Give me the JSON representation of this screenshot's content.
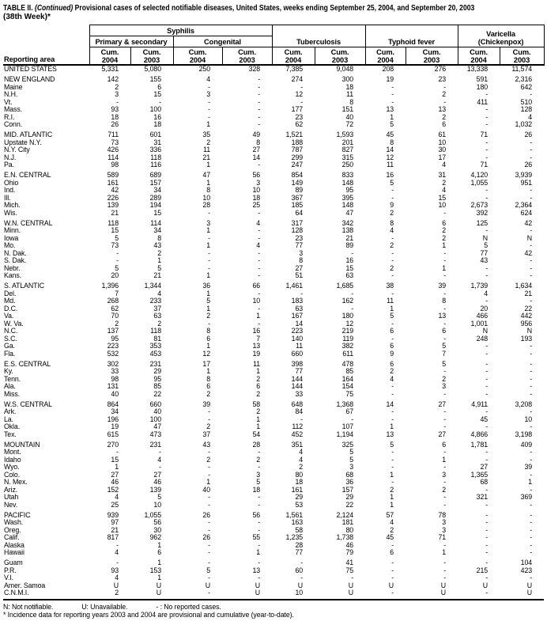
{
  "title": {
    "part1": "TABLE II.",
    "part2": "(Continued)",
    "part3": "Provisional cases of selected notifiable diseases, United States, weeks ending September 25, 2004, and September 20, 2003",
    "line2": "(38th Week)*"
  },
  "colors": {
    "text": "#000000",
    "background": "#ffffff",
    "rule": "#000000"
  },
  "table": {
    "columns": {
      "reporting_area": "Reporting area",
      "syphilis": "Syphilis",
      "primary_secondary": "Primary & secondary",
      "congenital": "Congenital",
      "tuberculosis": "Tuberculosis",
      "typhoid": "Typhoid fever",
      "varicella_line1": "Varicella",
      "varicella_line2": "(Chickenpox)",
      "cum_label": "Cum.",
      "years": [
        "2004",
        "2003",
        "2004",
        "2003",
        "2004",
        "2003",
        "2004",
        "2003",
        "2004",
        "2003"
      ]
    },
    "rows": [
      {
        "label": "UNITED STATES",
        "type": "total",
        "values": [
          "5,331",
          "5,080",
          "250",
          "328",
          "7,385",
          "9,048",
          "208",
          "276",
          "13,338",
          "11,574"
        ]
      },
      {
        "type": "gap"
      },
      {
        "label": "NEW ENGLAND",
        "type": "region",
        "values": [
          "142",
          "155",
          "4",
          "-",
          "274",
          "300",
          "19",
          "23",
          "591",
          "2,316"
        ]
      },
      {
        "label": "Maine",
        "type": "state",
        "values": [
          "2",
          "6",
          "-",
          "-",
          "-",
          "18",
          "-",
          "-",
          "180",
          "642"
        ]
      },
      {
        "label": "N.H.",
        "type": "state",
        "values": [
          "3",
          "15",
          "3",
          "-",
          "12",
          "11",
          "-",
          "2",
          "-",
          "-"
        ]
      },
      {
        "label": "Vt.",
        "type": "state",
        "values": [
          "-",
          "-",
          "-",
          "-",
          "-",
          "8",
          "-",
          "-",
          "411",
          "510"
        ]
      },
      {
        "label": "Mass.",
        "type": "state",
        "values": [
          "93",
          "100",
          "-",
          "-",
          "177",
          "151",
          "13",
          "13",
          "-",
          "128"
        ]
      },
      {
        "label": "R.I.",
        "type": "state",
        "values": [
          "18",
          "16",
          "-",
          "-",
          "23",
          "40",
          "1",
          "2",
          "-",
          "4"
        ]
      },
      {
        "label": "Conn.",
        "type": "state",
        "values": [
          "26",
          "18",
          "1",
          "-",
          "62",
          "72",
          "5",
          "6",
          "-",
          "1,032"
        ]
      },
      {
        "type": "gap"
      },
      {
        "label": "MID. ATLANTIC",
        "type": "region",
        "values": [
          "711",
          "601",
          "35",
          "49",
          "1,521",
          "1,593",
          "45",
          "61",
          "71",
          "26"
        ]
      },
      {
        "label": "Upstate N.Y.",
        "type": "state",
        "values": [
          "73",
          "31",
          "2",
          "8",
          "188",
          "201",
          "8",
          "10",
          "-",
          "-"
        ]
      },
      {
        "label": "N.Y. City",
        "type": "state",
        "values": [
          "426",
          "336",
          "11",
          "27",
          "787",
          "827",
          "14",
          "30",
          "-",
          "-"
        ]
      },
      {
        "label": "N.J.",
        "type": "state",
        "values": [
          "114",
          "118",
          "21",
          "14",
          "299",
          "315",
          "12",
          "17",
          "-",
          "-"
        ]
      },
      {
        "label": "Pa.",
        "type": "state",
        "values": [
          "98",
          "116",
          "1",
          "-",
          "247",
          "250",
          "11",
          "4",
          "71",
          "26"
        ]
      },
      {
        "type": "gap"
      },
      {
        "label": "E.N. CENTRAL",
        "type": "region",
        "values": [
          "589",
          "689",
          "47",
          "56",
          "854",
          "833",
          "16",
          "31",
          "4,120",
          "3,939"
        ]
      },
      {
        "label": "Ohio",
        "type": "state",
        "values": [
          "161",
          "157",
          "1",
          "3",
          "149",
          "148",
          "5",
          "2",
          "1,055",
          "951"
        ]
      },
      {
        "label": "Ind.",
        "type": "state",
        "values": [
          "42",
          "34",
          "8",
          "10",
          "89",
          "95",
          "-",
          "4",
          "-",
          "-"
        ]
      },
      {
        "label": "Ill.",
        "type": "state",
        "values": [
          "226",
          "289",
          "10",
          "18",
          "367",
          "395",
          "-",
          "15",
          "-",
          "-"
        ]
      },
      {
        "label": "Mich.",
        "type": "state",
        "values": [
          "139",
          "194",
          "28",
          "25",
          "185",
          "148",
          "9",
          "10",
          "2,673",
          "2,364"
        ]
      },
      {
        "label": "Wis.",
        "type": "state",
        "values": [
          "21",
          "15",
          "-",
          "-",
          "64",
          "47",
          "2",
          "-",
          "392",
          "624"
        ]
      },
      {
        "type": "gap"
      },
      {
        "label": "W.N. CENTRAL",
        "type": "region",
        "values": [
          "118",
          "114",
          "3",
          "4",
          "317",
          "342",
          "8",
          "6",
          "125",
          "42"
        ]
      },
      {
        "label": "Minn.",
        "type": "state",
        "values": [
          "15",
          "34",
          "1",
          "-",
          "128",
          "138",
          "4",
          "2",
          "-",
          "-"
        ]
      },
      {
        "label": "Iowa",
        "type": "state",
        "values": [
          "5",
          "8",
          "-",
          "-",
          "23",
          "21",
          "-",
          "2",
          "N",
          "N"
        ]
      },
      {
        "label": "Mo.",
        "type": "state",
        "values": [
          "73",
          "43",
          "1",
          "4",
          "77",
          "89",
          "2",
          "1",
          "5",
          "-"
        ]
      },
      {
        "label": "N. Dak.",
        "type": "state",
        "values": [
          "-",
          "2",
          "-",
          "-",
          "3",
          "-",
          "-",
          "-",
          "77",
          "42"
        ]
      },
      {
        "label": "S. Dak.",
        "type": "state",
        "values": [
          "-",
          "1",
          "-",
          "-",
          "8",
          "16",
          "-",
          "-",
          "43",
          "-"
        ]
      },
      {
        "label": "Nebr.",
        "type": "state",
        "values": [
          "5",
          "5",
          "-",
          "-",
          "27",
          "15",
          "2",
          "1",
          "-",
          "-"
        ]
      },
      {
        "label": "Kans.",
        "type": "state",
        "values": [
          "20",
          "21",
          "1",
          "-",
          "51",
          "63",
          "-",
          "-",
          "-",
          "-"
        ]
      },
      {
        "type": "gap"
      },
      {
        "label": "S. ATLANTIC",
        "type": "region",
        "values": [
          "1,396",
          "1,344",
          "36",
          "66",
          "1,461",
          "1,685",
          "38",
          "39",
          "1,739",
          "1,634"
        ]
      },
      {
        "label": "Del.",
        "type": "state",
        "values": [
          "7",
          "4",
          "1",
          "-",
          "-",
          "-",
          "-",
          "-",
          "4",
          "21"
        ]
      },
      {
        "label": "Md.",
        "type": "state",
        "values": [
          "268",
          "233",
          "5",
          "10",
          "183",
          "162",
          "11",
          "8",
          "-",
          "-"
        ]
      },
      {
        "label": "D.C.",
        "type": "state",
        "values": [
          "62",
          "37",
          "1",
          "-",
          "63",
          "-",
          "1",
          "-",
          "20",
          "22"
        ]
      },
      {
        "label": "Va.",
        "type": "state",
        "values": [
          "70",
          "63",
          "2",
          "1",
          "167",
          "180",
          "5",
          "13",
          "466",
          "442"
        ]
      },
      {
        "label": "W. Va.",
        "type": "state",
        "values": [
          "2",
          "2",
          "-",
          "-",
          "14",
          "12",
          "-",
          "-",
          "1,001",
          "956"
        ]
      },
      {
        "label": "N.C.",
        "type": "state",
        "values": [
          "137",
          "118",
          "8",
          "16",
          "223",
          "219",
          "6",
          "6",
          "N",
          "N"
        ]
      },
      {
        "label": "S.C.",
        "type": "state",
        "values": [
          "95",
          "81",
          "6",
          "7",
          "140",
          "119",
          "-",
          "-",
          "248",
          "193"
        ]
      },
      {
        "label": "Ga.",
        "type": "state",
        "values": [
          "223",
          "353",
          "1",
          "13",
          "11",
          "382",
          "6",
          "5",
          "-",
          "-"
        ]
      },
      {
        "label": "Fla.",
        "type": "state",
        "values": [
          "532",
          "453",
          "12",
          "19",
          "660",
          "611",
          "9",
          "7",
          "-",
          "-"
        ]
      },
      {
        "type": "gap"
      },
      {
        "label": "E.S. CENTRAL",
        "type": "region",
        "values": [
          "302",
          "231",
          "17",
          "11",
          "398",
          "478",
          "6",
          "5",
          "-",
          "-"
        ]
      },
      {
        "label": "Ky.",
        "type": "state",
        "values": [
          "33",
          "29",
          "1",
          "1",
          "77",
          "85",
          "2",
          "-",
          "-",
          "-"
        ]
      },
      {
        "label": "Tenn.",
        "type": "state",
        "values": [
          "98",
          "95",
          "8",
          "2",
          "144",
          "164",
          "4",
          "2",
          "-",
          "-"
        ]
      },
      {
        "label": "Ala.",
        "type": "state",
        "values": [
          "131",
          "85",
          "6",
          "6",
          "144",
          "154",
          "-",
          "3",
          "-",
          "-"
        ]
      },
      {
        "label": "Miss.",
        "type": "state",
        "values": [
          "40",
          "22",
          "2",
          "2",
          "33",
          "75",
          "-",
          "-",
          "-",
          "-"
        ]
      },
      {
        "type": "gap"
      },
      {
        "label": "W.S. CENTRAL",
        "type": "region",
        "values": [
          "864",
          "660",
          "39",
          "58",
          "648",
          "1,368",
          "14",
          "27",
          "4,911",
          "3,208"
        ]
      },
      {
        "label": "Ark.",
        "type": "state",
        "values": [
          "34",
          "40",
          "-",
          "2",
          "84",
          "67",
          "-",
          "-",
          "-",
          "-"
        ]
      },
      {
        "label": "La.",
        "type": "state",
        "values": [
          "196",
          "100",
          "-",
          "1",
          "-",
          "-",
          "-",
          "-",
          "45",
          "10"
        ]
      },
      {
        "label": "Okla.",
        "type": "state",
        "values": [
          "19",
          "47",
          "2",
          "1",
          "112",
          "107",
          "1",
          "-",
          "-",
          "-"
        ]
      },
      {
        "label": "Tex.",
        "type": "state",
        "values": [
          "615",
          "473",
          "37",
          "54",
          "452",
          "1,194",
          "13",
          "27",
          "4,866",
          "3,198"
        ]
      },
      {
        "type": "gap"
      },
      {
        "label": "MOUNTAIN",
        "type": "region",
        "values": [
          "270",
          "231",
          "43",
          "28",
          "351",
          "325",
          "5",
          "6",
          "1,781",
          "409"
        ]
      },
      {
        "label": "Mont.",
        "type": "state",
        "values": [
          "-",
          "-",
          "-",
          "-",
          "4",
          "5",
          "-",
          "-",
          "-",
          "-"
        ]
      },
      {
        "label": "Idaho",
        "type": "state",
        "values": [
          "15",
          "4",
          "2",
          "2",
          "4",
          "5",
          "-",
          "1",
          "-",
          "-"
        ]
      },
      {
        "label": "Wyo.",
        "type": "state",
        "values": [
          "1",
          "-",
          "-",
          "-",
          "2",
          "3",
          "-",
          "-",
          "27",
          "39"
        ]
      },
      {
        "label": "Colo.",
        "type": "state",
        "values": [
          "27",
          "27",
          "-",
          "3",
          "80",
          "68",
          "1",
          "3",
          "1,365",
          "-"
        ]
      },
      {
        "label": "N. Mex.",
        "type": "state",
        "values": [
          "46",
          "46",
          "1",
          "5",
          "18",
          "36",
          "-",
          "-",
          "68",
          "1"
        ]
      },
      {
        "label": "Ariz.",
        "type": "state",
        "values": [
          "152",
          "139",
          "40",
          "18",
          "161",
          "157",
          "2",
          "2",
          "-",
          "-"
        ]
      },
      {
        "label": "Utah",
        "type": "state",
        "values": [
          "4",
          "5",
          "-",
          "-",
          "29",
          "29",
          "1",
          "-",
          "321",
          "369"
        ]
      },
      {
        "label": "Nev.",
        "type": "state",
        "values": [
          "25",
          "10",
          "-",
          "-",
          "53",
          "22",
          "1",
          "-",
          "-",
          "-"
        ]
      },
      {
        "type": "gap"
      },
      {
        "label": "PACIFIC",
        "type": "region",
        "values": [
          "939",
          "1,055",
          "26",
          "56",
          "1,561",
          "2,124",
          "57",
          "78",
          "-",
          "-"
        ]
      },
      {
        "label": "Wash.",
        "type": "state",
        "values": [
          "97",
          "56",
          "-",
          "-",
          "163",
          "181",
          "4",
          "3",
          "-",
          "-"
        ]
      },
      {
        "label": "Oreg.",
        "type": "state",
        "values": [
          "21",
          "30",
          "-",
          "-",
          "58",
          "80",
          "2",
          "3",
          "-",
          "-"
        ]
      },
      {
        "label": "Calif.",
        "type": "state",
        "values": [
          "817",
          "962",
          "26",
          "55",
          "1,235",
          "1,738",
          "45",
          "71",
          "-",
          "-"
        ]
      },
      {
        "label": "Alaska",
        "type": "state",
        "values": [
          "-",
          "1",
          "-",
          "-",
          "28",
          "46",
          "-",
          "-",
          "-",
          "-"
        ]
      },
      {
        "label": "Hawaii",
        "type": "state",
        "values": [
          "4",
          "6",
          "-",
          "1",
          "77",
          "79",
          "6",
          "1",
          "-",
          "-"
        ]
      },
      {
        "type": "gap"
      },
      {
        "label": "Guam",
        "type": "state",
        "values": [
          "-",
          "1",
          "-",
          "-",
          "-",
          "41",
          "-",
          "-",
          "-",
          "104"
        ]
      },
      {
        "label": "P.R.",
        "type": "state",
        "values": [
          "93",
          "153",
          "5",
          "13",
          "60",
          "75",
          "-",
          "-",
          "215",
          "423"
        ]
      },
      {
        "label": "V.I.",
        "type": "state",
        "values": [
          "4",
          "1",
          "-",
          "-",
          "-",
          "-",
          "-",
          "-",
          "-",
          "-"
        ]
      },
      {
        "label": "Amer. Samoa",
        "type": "state",
        "values": [
          "U",
          "U",
          "U",
          "U",
          "U",
          "U",
          "U",
          "U",
          "U",
          "U"
        ]
      },
      {
        "label": "C.N.M.I.",
        "type": "state",
        "values": [
          "2",
          "U",
          "-",
          "U",
          "10",
          "U",
          "-",
          "U",
          "-",
          "U"
        ]
      }
    ]
  },
  "footnotes": {
    "not_notifiable": "N: Not notifiable.",
    "unavailable": "U: Unavailable.",
    "no_cases": "- : No reported cases.",
    "incidence": "* Incidence data for reporting years 2003 and 2004 are provisional and cumulative (year-to-date)."
  }
}
